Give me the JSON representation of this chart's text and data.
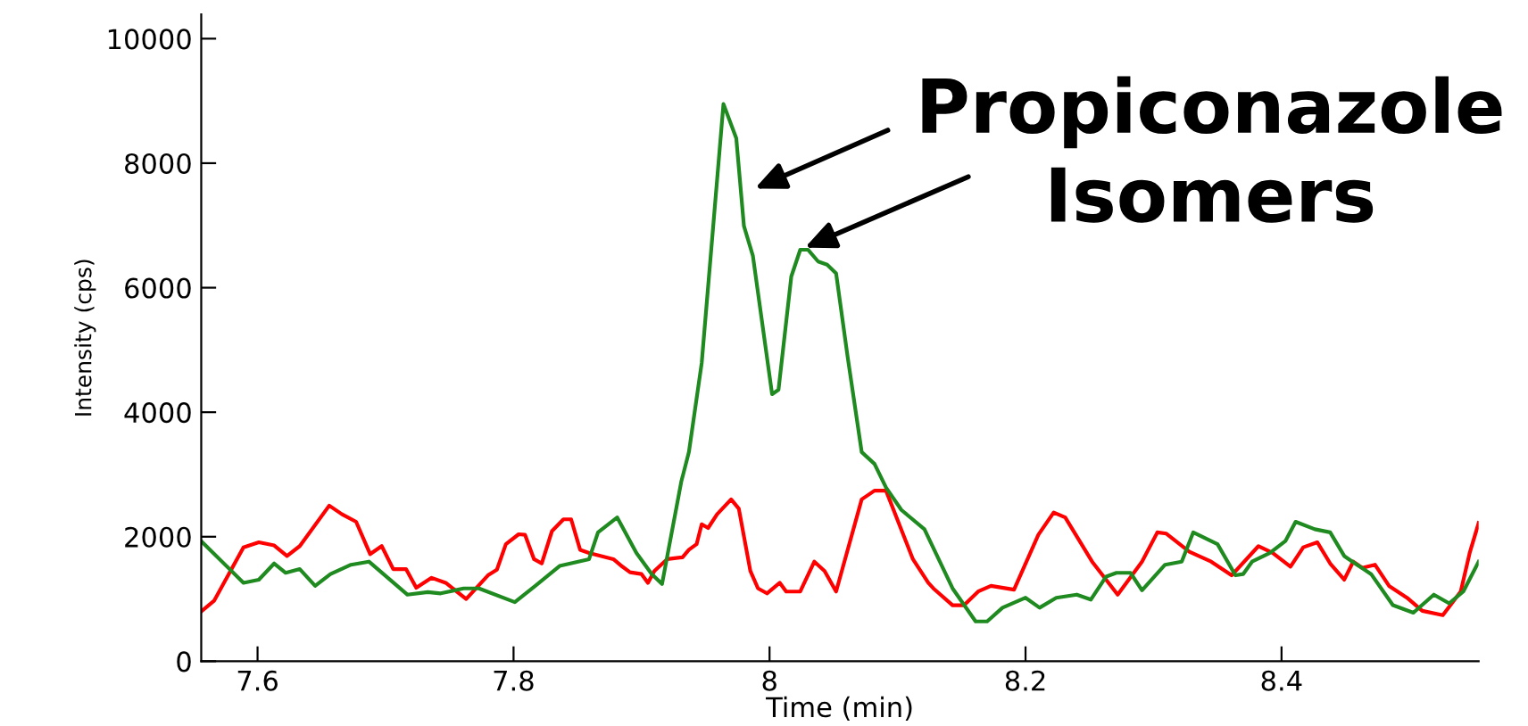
{
  "chart_data": {
    "type": "line",
    "xlabel": "Time (min)",
    "ylabel": "Intensity (cps)",
    "xlim": [
      7.556,
      8.554
    ],
    "ylim": [
      0,
      10390
    ],
    "xticks": [
      7.6,
      7.8,
      {
        "value": 8.0,
        "label": "8"
      },
      8.2,
      8.4
    ],
    "yticks": [
      0,
      2000,
      4000,
      6000,
      8000,
      10000
    ],
    "grid": false,
    "legend": false,
    "marker": "none",
    "line_style": "solid",
    "annotations": [
      {
        "text": "Propiconazole\nIsomers",
        "x": 7.985,
        "y": 7560
      }
    ],
    "series": [
      {
        "color": "#ff0000",
        "x": [
          7.556,
          7.566,
          7.589,
          7.601,
          7.613,
          7.623,
          7.633,
          7.656,
          7.666,
          7.677,
          7.688,
          7.697,
          7.706,
          7.716,
          7.724,
          7.736,
          7.747,
          7.763,
          7.78,
          7.787,
          7.794,
          7.804,
          7.809,
          7.816,
          7.822,
          7.83,
          7.839,
          7.845,
          7.852,
          7.859,
          7.878,
          7.885,
          7.891,
          7.9,
          7.905,
          7.91,
          7.92,
          7.932,
          7.937,
          7.943,
          7.947,
          7.952,
          7.959,
          7.97,
          7.976,
          7.985,
          7.991,
          7.998,
          8.008,
          8.013,
          8.024,
          8.035,
          8.043,
          8.052,
          8.072,
          8.082,
          8.091,
          8.112,
          8.124,
          8.128,
          8.143,
          8.152,
          8.163,
          8.173,
          8.191,
          8.21,
          8.222,
          8.231,
          8.252,
          8.272,
          8.291,
          8.303,
          8.31,
          8.328,
          8.345,
          8.361,
          8.382,
          8.393,
          8.407,
          8.417,
          8.428,
          8.438,
          8.449,
          8.456,
          8.463,
          8.473,
          8.484,
          8.498,
          8.51,
          8.526,
          8.54,
          8.547,
          8.554
        ],
        "values": [
          800,
          970,
          1830,
          1910,
          1860,
          1690,
          1850,
          2500,
          2360,
          2240,
          1720,
          1850,
          1480,
          1480,
          1180,
          1340,
          1260,
          1000,
          1380,
          1470,
          1880,
          2040,
          2030,
          1640,
          1570,
          2090,
          2280,
          2280,
          1790,
          1740,
          1640,
          1520,
          1430,
          1400,
          1260,
          1450,
          1640,
          1670,
          1790,
          1880,
          2200,
          2140,
          2360,
          2600,
          2450,
          1450,
          1170,
          1090,
          1260,
          1120,
          1120,
          1600,
          1450,
          1120,
          2600,
          2740,
          2740,
          1640,
          1260,
          1170,
          900,
          900,
          1120,
          1210,
          1150,
          2030,
          2390,
          2310,
          1600,
          1070,
          1600,
          2070,
          2050,
          1760,
          1600,
          1380,
          1850,
          1740,
          1520,
          1830,
          1910,
          1570,
          1310,
          1600,
          1500,
          1550,
          1210,
          1020,
          810,
          740,
          1120,
          1740,
          2220
        ]
      },
      {
        "color": "#1f8a1f",
        "x": [
          7.556,
          7.589,
          7.601,
          7.613,
          7.622,
          7.633,
          7.645,
          7.657,
          7.673,
          7.687,
          7.717,
          7.733,
          7.743,
          7.761,
          7.773,
          7.801,
          7.817,
          7.836,
          7.859,
          7.866,
          7.881,
          7.896,
          7.908,
          7.916,
          7.931,
          7.937,
          7.947,
          7.964,
          7.974,
          7.98,
          7.987,
          8.002,
          8.007,
          8.017,
          8.024,
          8.03,
          8.038,
          8.045,
          8.052,
          8.061,
          8.072,
          8.082,
          8.091,
          8.103,
          8.121,
          8.143,
          8.161,
          8.17,
          8.182,
          8.2,
          8.211,
          8.224,
          8.24,
          8.251,
          8.263,
          8.271,
          8.282,
          8.291,
          8.309,
          8.322,
          8.331,
          8.35,
          8.364,
          8.37,
          8.377,
          8.391,
          8.403,
          8.411,
          8.426,
          8.438,
          8.449,
          8.459,
          8.47,
          8.487,
          8.503,
          8.519,
          8.531,
          8.542,
          8.554
        ],
        "values": [
          1930,
          1260,
          1310,
          1570,
          1420,
          1480,
          1210,
          1400,
          1550,
          1600,
          1070,
          1110,
          1090,
          1170,
          1170,
          950,
          1210,
          1530,
          1640,
          2070,
          2310,
          1740,
          1400,
          1240,
          2880,
          3360,
          4790,
          8950,
          8400,
          6990,
          6510,
          4290,
          4360,
          6180,
          6610,
          6610,
          6420,
          6370,
          6230,
          4890,
          3360,
          3170,
          2790,
          2430,
          2120,
          1170,
          640,
          640,
          860,
          1020,
          860,
          1020,
          1070,
          990,
          1360,
          1420,
          1420,
          1140,
          1550,
          1600,
          2070,
          1880,
          1380,
          1400,
          1600,
          1740,
          1930,
          2240,
          2120,
          2070,
          1690,
          1550,
          1400,
          900,
          780,
          1070,
          930,
          1120,
          1600
        ]
      }
    ]
  }
}
